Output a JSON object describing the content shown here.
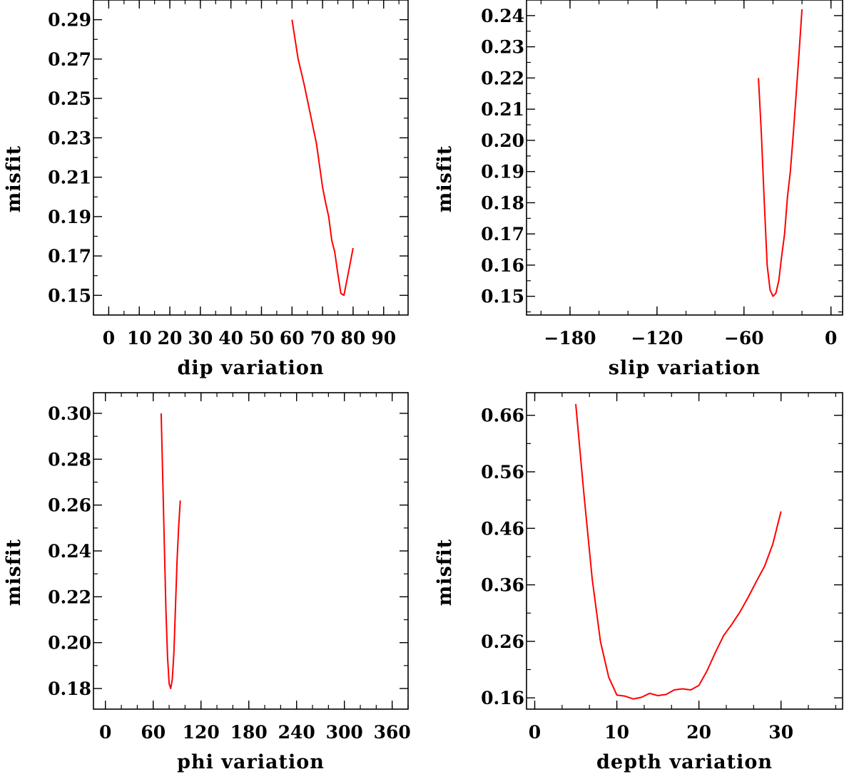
{
  "chart_data": [
    {
      "type": "line",
      "xlabel": "dip variation",
      "ylabel": "misfit",
      "xlim": [
        -5,
        98
      ],
      "ylim": [
        0.14,
        0.3
      ],
      "xticks": [
        0,
        10,
        20,
        30,
        40,
        50,
        60,
        70,
        80,
        90
      ],
      "yticks": [
        0.15,
        0.17,
        0.19,
        0.21,
        0.23,
        0.25,
        0.27,
        0.29
      ],
      "series": [
        {
          "color": "#ff0000",
          "x": [
            60,
            62,
            64,
            66,
            68,
            70,
            71,
            72,
            73,
            74,
            75,
            76,
            77,
            78,
            79,
            80
          ],
          "y": [
            0.29,
            0.27,
            0.257,
            0.242,
            0.227,
            0.205,
            0.197,
            0.19,
            0.178,
            0.172,
            0.161,
            0.151,
            0.15,
            0.158,
            0.166,
            0.174
          ]
        }
      ]
    },
    {
      "type": "line",
      "xlabel": "slip variation",
      "ylabel": "misfit",
      "xlim": [
        -210,
        8
      ],
      "ylim": [
        0.144,
        0.245
      ],
      "xticks": [
        -180,
        -120,
        -60,
        0
      ],
      "xticklabels": [
        "−180",
        "−120",
        "−60",
        "0"
      ],
      "yticks": [
        0.15,
        0.16,
        0.17,
        0.18,
        0.19,
        0.2,
        0.21,
        0.22,
        0.23,
        0.24
      ],
      "series": [
        {
          "color": "#ff0000",
          "x": [
            -50,
            -48,
            -46,
            -44,
            -42,
            -40,
            -38,
            -36,
            -34,
            -32,
            -30,
            -28,
            -26,
            -24,
            -22,
            -20
          ],
          "y": [
            0.22,
            0.202,
            0.18,
            0.16,
            0.152,
            0.15,
            0.151,
            0.155,
            0.163,
            0.17,
            0.182,
            0.19,
            0.202,
            0.215,
            0.228,
            0.242
          ]
        }
      ]
    },
    {
      "type": "line",
      "xlabel": "phi variation",
      "ylabel": "misfit",
      "xlim": [
        -15,
        380
      ],
      "ylim": [
        0.171,
        0.309
      ],
      "xticks": [
        0,
        60,
        120,
        180,
        240,
        300,
        360
      ],
      "yticks": [
        0.18,
        0.2,
        0.22,
        0.24,
        0.26,
        0.28,
        0.3
      ],
      "series": [
        {
          "color": "#ff0000",
          "x": [
            70,
            72,
            74,
            76,
            78,
            80,
            82,
            84,
            86,
            88,
            90,
            92,
            94
          ],
          "y": [
            0.3,
            0.272,
            0.242,
            0.214,
            0.194,
            0.182,
            0.18,
            0.184,
            0.196,
            0.216,
            0.236,
            0.251,
            0.262
          ]
        }
      ]
    },
    {
      "type": "line",
      "xlabel": "depth variation",
      "ylabel": "misfit",
      "xlim": [
        -1,
        37.5
      ],
      "ylim": [
        0.14,
        0.7
      ],
      "xticks": [
        0,
        10,
        20,
        30
      ],
      "yticks": [
        0.16,
        0.26,
        0.36,
        0.46,
        0.56,
        0.66
      ],
      "yticklabels": [
        "0.16",
        "0.26",
        "0.36",
        "0.46",
        "0.56",
        "0.66"
      ],
      "series": [
        {
          "color": "#ff0000",
          "x": [
            5,
            6,
            7,
            8,
            9,
            10,
            11,
            12,
            13,
            14,
            15,
            16,
            17,
            18,
            19,
            20,
            21,
            22,
            23,
            24,
            25,
            26,
            27,
            28,
            29,
            30
          ],
          "y": [
            0.68,
            0.52,
            0.37,
            0.26,
            0.197,
            0.165,
            0.163,
            0.158,
            0.161,
            0.168,
            0.164,
            0.166,
            0.174,
            0.176,
            0.174,
            0.182,
            0.208,
            0.24,
            0.27,
            0.29,
            0.312,
            0.338,
            0.366,
            0.393,
            0.432,
            0.49
          ]
        }
      ]
    }
  ]
}
